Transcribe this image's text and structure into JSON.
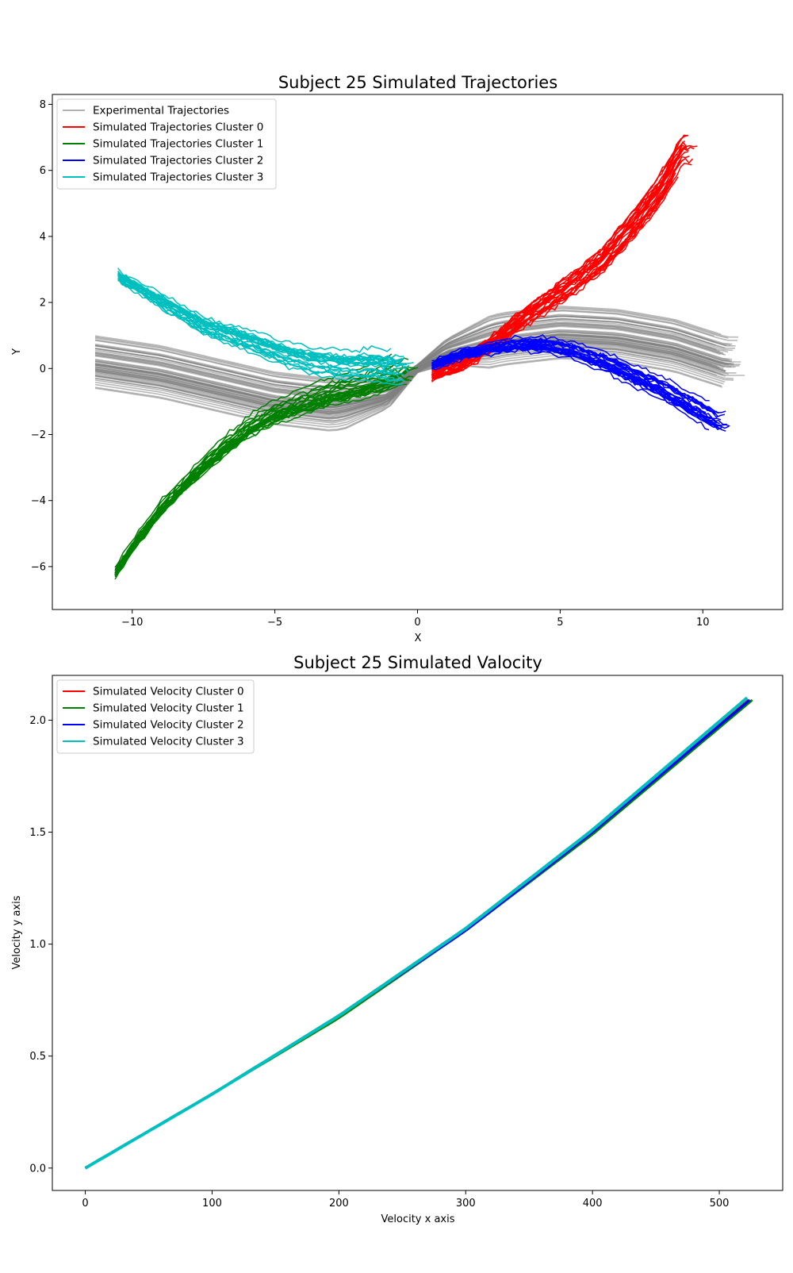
{
  "chart_data": [
    {
      "type": "line",
      "title": "Subject 25 Simulated Trajectories",
      "xlabel": "X",
      "ylabel": "Y",
      "xlim": [
        -12.8,
        12.8
      ],
      "ylim": [
        -7.3,
        8.3
      ],
      "xticks": [
        -10,
        -5,
        0,
        5,
        10
      ],
      "xtick_labels": [
        "−10",
        "−5",
        "0",
        "5",
        "10"
      ],
      "yticks": [
        -6,
        -4,
        -2,
        0,
        2,
        4,
        6,
        8
      ],
      "ytick_labels": [
        "−6",
        "−4",
        "−2",
        "0",
        "2",
        "4",
        "6",
        "8"
      ],
      "grid": false,
      "legend_position": "upper-left",
      "series": [
        {
          "name": "Experimental Trajectories",
          "color": "#808080",
          "x": [
            -11.3,
            -9,
            -7,
            -5,
            -3,
            -1,
            0,
            1,
            3,
            5,
            7,
            9,
            10.8
          ],
          "y": [
            0.2,
            -0.1,
            -0.5,
            -0.9,
            -1.1,
            -0.8,
            0,
            0.5,
            0.9,
            1.1,
            1,
            0.7,
            0.2
          ]
        },
        {
          "name": "Simulated Trajectories Cluster 0",
          "color": "#ff0000",
          "x": [
            0.5,
            1.5,
            2.5,
            3.5,
            4.5,
            5.5,
            6.5,
            7.5,
            8.5,
            9.3
          ],
          "y": [
            -0.2,
            0.1,
            0.7,
            1.4,
            2,
            2.6,
            3.3,
            4.3,
            5.4,
            6.6
          ]
        },
        {
          "name": "Simulated Trajectories Cluster 1",
          "color": "#008000",
          "x": [
            -10.6,
            -9.8,
            -9,
            -8,
            -7,
            -6,
            -5,
            -4,
            -3,
            -2,
            -1,
            -0.5
          ],
          "y": [
            -6.2,
            -5.2,
            -4.3,
            -3.4,
            -2.6,
            -1.9,
            -1.4,
            -1.1,
            -0.8,
            -0.6,
            -0.3,
            -0.1
          ]
        },
        {
          "name": "Simulated Trajectories Cluster 2",
          "color": "#0000ff",
          "x": [
            0.5,
            1.5,
            2.5,
            3.5,
            4.5,
            5.5,
            6.5,
            7.5,
            8.5,
            9.5,
            10.5
          ],
          "y": [
            0.1,
            0.4,
            0.6,
            0.7,
            0.7,
            0.5,
            0.2,
            -0.2,
            -0.6,
            -1.1,
            -1.6
          ]
        },
        {
          "name": "Simulated Trajectories Cluster 3",
          "color": "#00bfbf",
          "x": [
            -10.5,
            -9.5,
            -8.5,
            -7.5,
            -6.5,
            -5.5,
            -4.5,
            -3.5,
            -2.5,
            -1.5,
            -0.5
          ],
          "y": [
            2.8,
            2.3,
            1.8,
            1.3,
            1,
            0.7,
            0.4,
            0.2,
            0.1,
            0.1,
            0
          ]
        }
      ]
    },
    {
      "type": "line",
      "title": "Subject 25 Simulated Valocity",
      "xlabel": "Velocity x axis",
      "ylabel": "Velocity y axis",
      "xlim": [
        -26,
        550
      ],
      "ylim": [
        -0.1,
        2.2
      ],
      "xticks": [
        0,
        100,
        200,
        300,
        400,
        500
      ],
      "xtick_labels": [
        "0",
        "100",
        "200",
        "300",
        "400",
        "500"
      ],
      "yticks": [
        0,
        0.5,
        1,
        1.5,
        2
      ],
      "ytick_labels": [
        "0.0",
        "0.5",
        "1.0",
        "1.5",
        "2.0"
      ],
      "grid": false,
      "legend_position": "upper-left",
      "series": [
        {
          "name": "Simulated Velocity Cluster 0",
          "color": "#ff0000",
          "x": [
            0,
            100,
            200,
            300,
            400,
            523
          ],
          "y": [
            0,
            0.33,
            0.68,
            1.07,
            1.5,
            2.09
          ]
        },
        {
          "name": "Simulated Velocity Cluster 1",
          "color": "#008000",
          "x": [
            0,
            100,
            200,
            300,
            400,
            526
          ],
          "y": [
            0,
            0.33,
            0.67,
            1.06,
            1.49,
            2.09
          ]
        },
        {
          "name": "Simulated Velocity Cluster 2",
          "color": "#0000ff",
          "x": [
            0,
            100,
            200,
            300,
            400,
            524
          ],
          "y": [
            0,
            0.33,
            0.68,
            1.06,
            1.5,
            2.09
          ]
        },
        {
          "name": "Simulated Velocity Cluster 3",
          "color": "#00bfbf",
          "x": [
            0,
            100,
            200,
            300,
            400,
            522
          ],
          "y": [
            0,
            0.33,
            0.68,
            1.07,
            1.51,
            2.1
          ]
        }
      ]
    }
  ]
}
